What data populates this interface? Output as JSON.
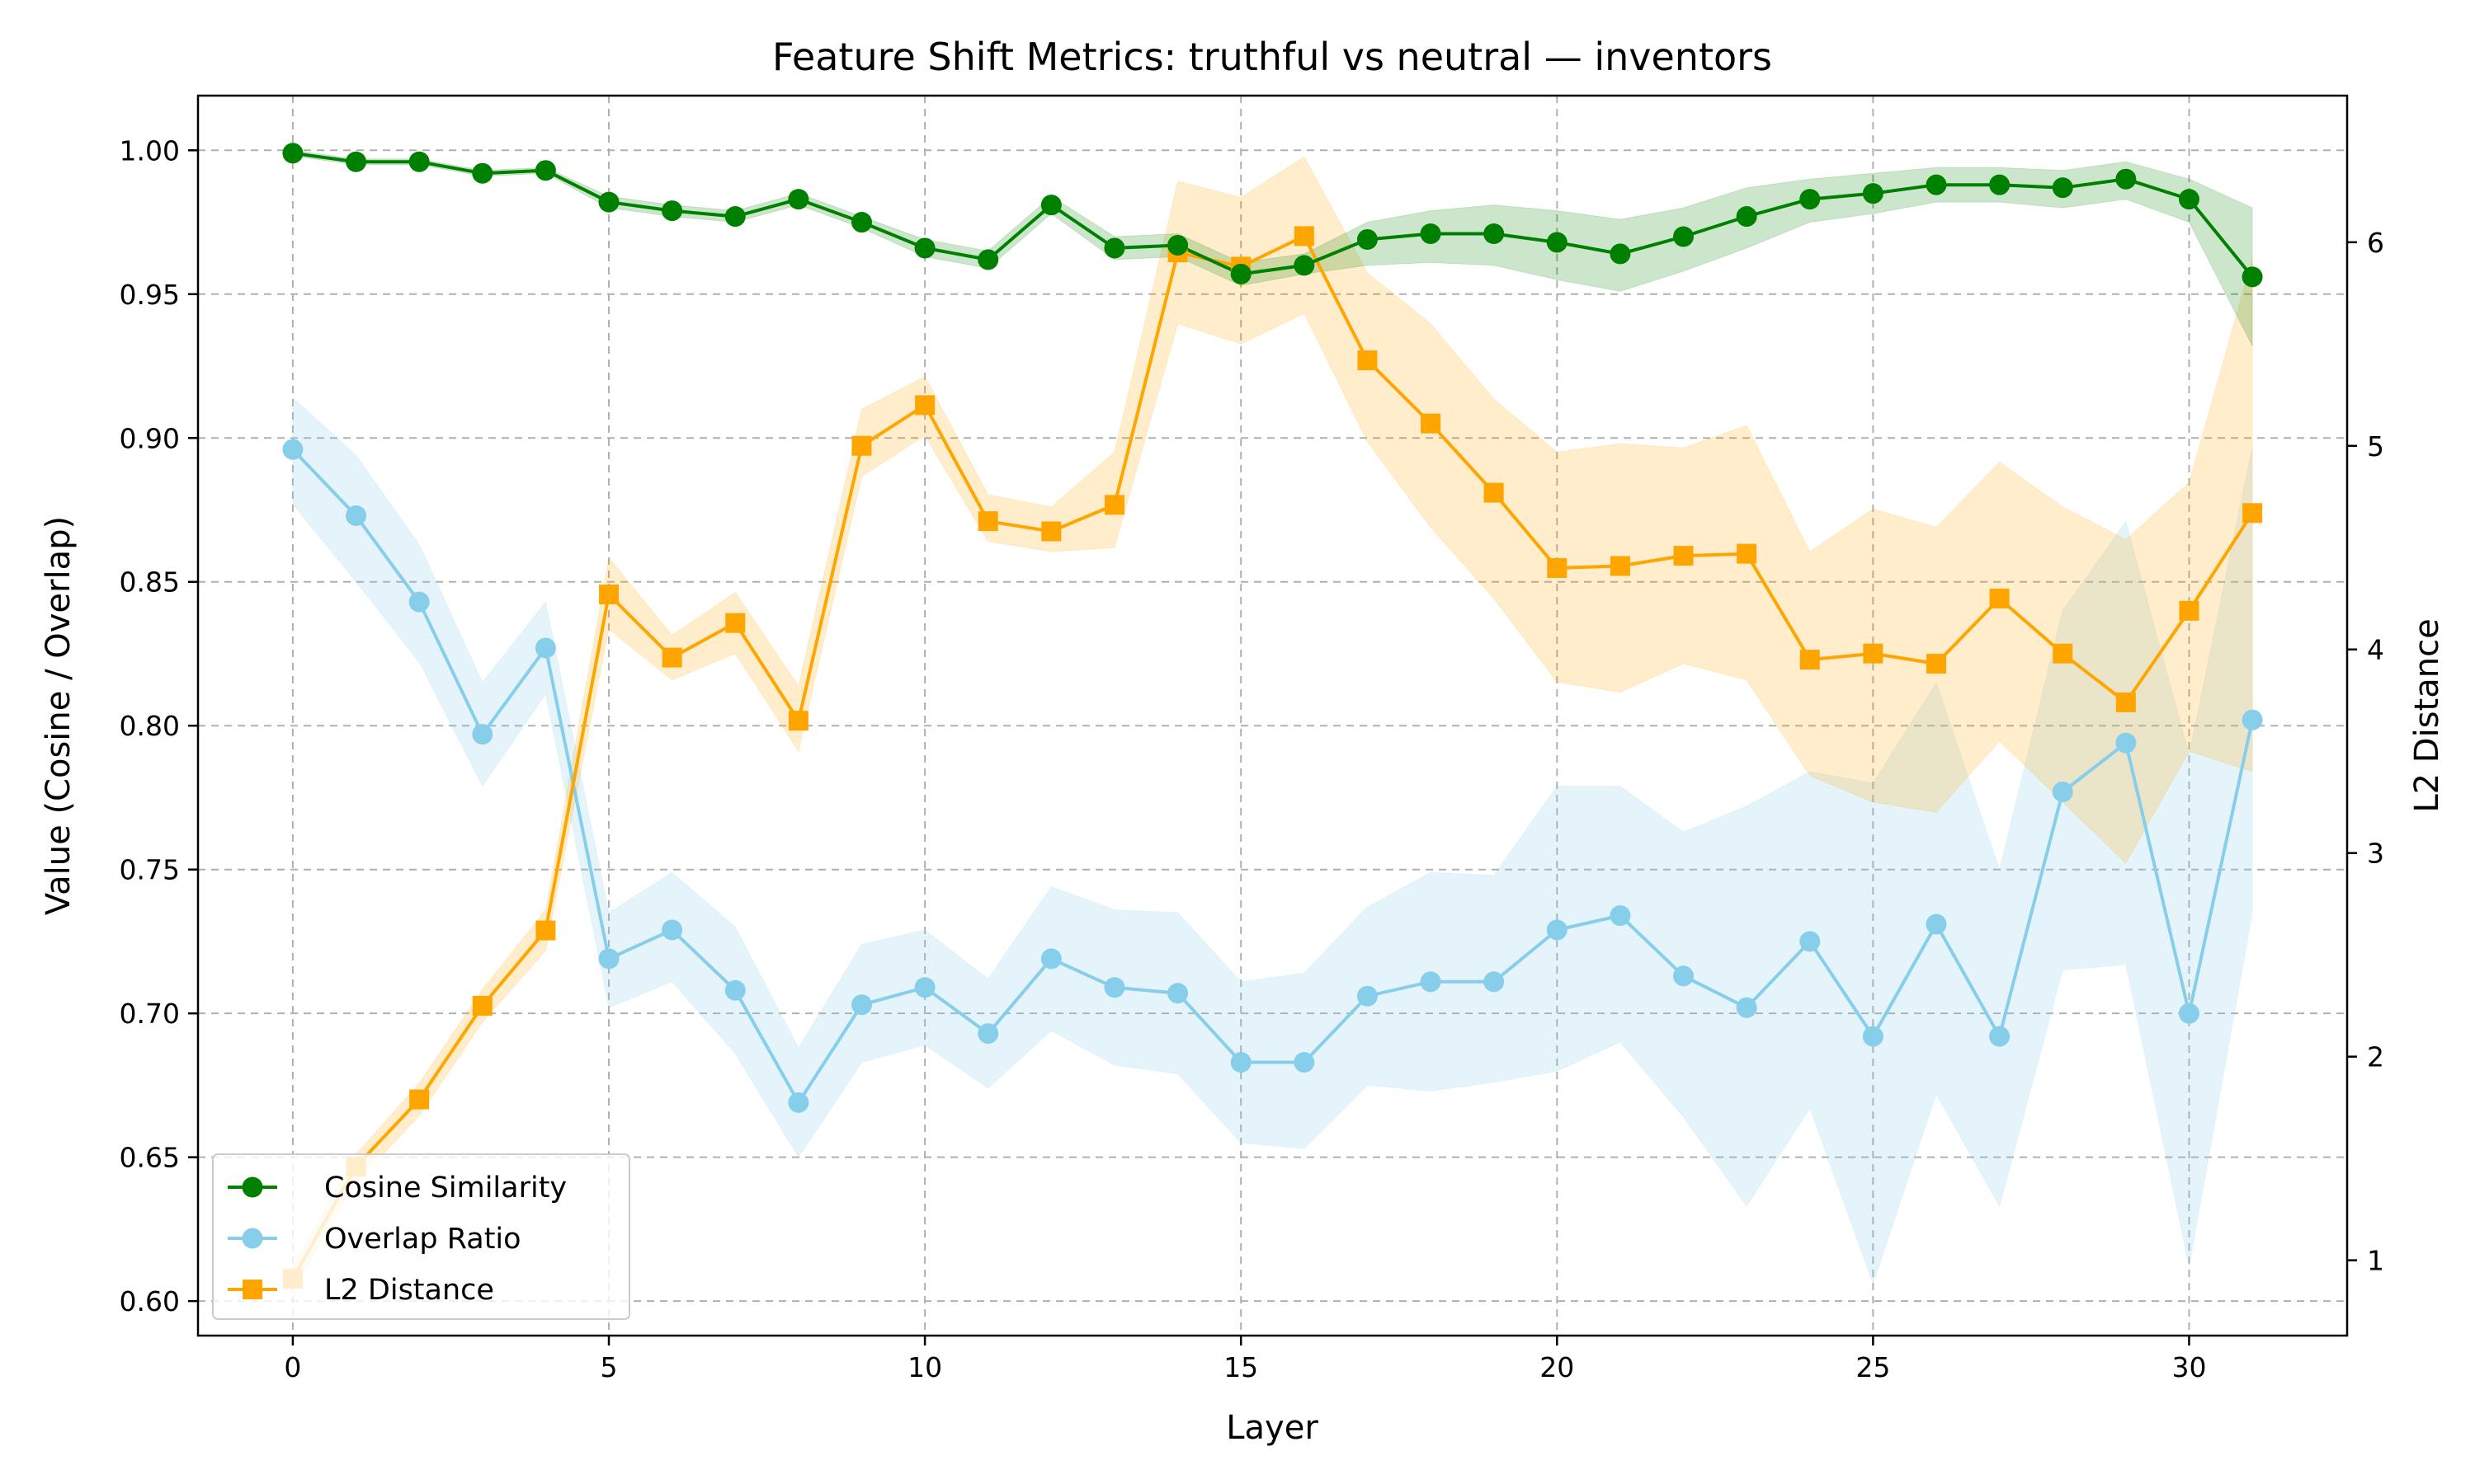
{
  "chart_data": {
    "type": "line",
    "title": "Feature Shift Metrics: truthful vs neutral — inventors",
    "xlabel": "Layer",
    "ylabel": "Value (Cosine / Overlap)",
    "y2label": "L2 Distance",
    "xlim": [
      -1.5,
      32.5
    ],
    "ylim": [
      0.588,
      1.019
    ],
    "y2lim": [
      0.63,
      6.72
    ],
    "xticks": [
      0,
      5,
      10,
      15,
      20,
      25,
      30
    ],
    "yticks": [
      0.6,
      0.65,
      0.7,
      0.75,
      0.8,
      0.85,
      0.9,
      0.95,
      1.0
    ],
    "y2ticks": [
      1,
      2,
      3,
      4,
      5,
      6
    ],
    "grid": true,
    "legend_position": "lower-left",
    "x": [
      0,
      1,
      2,
      3,
      4,
      5,
      6,
      7,
      8,
      9,
      10,
      11,
      12,
      13,
      14,
      15,
      16,
      17,
      18,
      19,
      20,
      21,
      22,
      23,
      24,
      25,
      26,
      27,
      28,
      29,
      30,
      31
    ],
    "series": [
      {
        "name": "Cosine Similarity",
        "axis": "left",
        "color": "#008000",
        "marker": "circle",
        "values": [
          0.999,
          0.996,
          0.996,
          0.992,
          0.993,
          0.982,
          0.979,
          0.977,
          0.983,
          0.975,
          0.966,
          0.962,
          0.981,
          0.966,
          0.967,
          0.957,
          0.96,
          0.969,
          0.971,
          0.971,
          0.968,
          0.964,
          0.97,
          0.977,
          0.983,
          0.985,
          0.988,
          0.988,
          0.987,
          0.99,
          0.983,
          0.956
        ],
        "lower": [
          0.998,
          0.995,
          0.995,
          0.991,
          0.992,
          0.98,
          0.977,
          0.975,
          0.981,
          0.973,
          0.963,
          0.959,
          0.978,
          0.962,
          0.963,
          0.953,
          0.957,
          0.96,
          0.961,
          0.96,
          0.955,
          0.951,
          0.958,
          0.966,
          0.975,
          0.978,
          0.982,
          0.982,
          0.98,
          0.983,
          0.975,
          0.932
        ],
        "upper": [
          1.0,
          0.997,
          0.997,
          0.993,
          0.994,
          0.984,
          0.981,
          0.979,
          0.985,
          0.977,
          0.969,
          0.965,
          0.984,
          0.97,
          0.971,
          0.961,
          0.964,
          0.975,
          0.979,
          0.981,
          0.979,
          0.976,
          0.98,
          0.987,
          0.99,
          0.992,
          0.994,
          0.994,
          0.993,
          0.996,
          0.99,
          0.98
        ]
      },
      {
        "name": "Overlap Ratio",
        "axis": "left",
        "color": "#87CEEB",
        "marker": "circle",
        "values": [
          0.896,
          0.873,
          0.843,
          0.797,
          0.827,
          0.719,
          0.729,
          0.708,
          0.669,
          0.703,
          0.709,
          0.693,
          0.719,
          0.709,
          0.707,
          0.683,
          0.683,
          0.706,
          0.711,
          0.711,
          0.729,
          0.734,
          0.713,
          0.702,
          0.725,
          0.692,
          0.731,
          0.692,
          0.777,
          0.794,
          0.7,
          0.802
        ],
        "lower": [
          0.877,
          0.85,
          0.822,
          0.779,
          0.811,
          0.702,
          0.711,
          0.686,
          0.65,
          0.683,
          0.689,
          0.674,
          0.694,
          0.682,
          0.679,
          0.655,
          0.653,
          0.675,
          0.673,
          0.676,
          0.68,
          0.69,
          0.664,
          0.633,
          0.667,
          0.606,
          0.672,
          0.633,
          0.715,
          0.717,
          0.612,
          0.735
        ],
        "upper": [
          0.914,
          0.894,
          0.863,
          0.815,
          0.843,
          0.735,
          0.749,
          0.73,
          0.688,
          0.724,
          0.729,
          0.712,
          0.744,
          0.736,
          0.735,
          0.711,
          0.714,
          0.737,
          0.749,
          0.748,
          0.779,
          0.779,
          0.763,
          0.772,
          0.784,
          0.78,
          0.815,
          0.75,
          0.84,
          0.871,
          0.79,
          0.897
        ]
      },
      {
        "name": "L2 Distance",
        "axis": "right",
        "color": "#FFA500",
        "marker": "square",
        "values": [
          0.91,
          1.46,
          1.79,
          2.25,
          2.62,
          4.27,
          3.96,
          4.13,
          3.65,
          5.0,
          5.2,
          4.63,
          4.58,
          4.71,
          5.95,
          5.88,
          6.03,
          5.42,
          5.11,
          4.77,
          4.4,
          4.41,
          4.46,
          4.47,
          3.95,
          3.98,
          3.93,
          4.25,
          3.98,
          3.74,
          4.19,
          4.67
        ],
        "lower": [
          0.85,
          1.38,
          1.71,
          2.17,
          2.52,
          4.1,
          3.85,
          3.98,
          3.5,
          4.85,
          5.05,
          4.53,
          4.48,
          4.5,
          5.6,
          5.5,
          5.65,
          5.02,
          4.6,
          4.25,
          3.84,
          3.79,
          3.93,
          3.85,
          3.38,
          3.25,
          3.2,
          3.55,
          3.25,
          2.95,
          3.5,
          3.4
        ],
        "upper": [
          0.97,
          1.52,
          1.87,
          2.33,
          2.72,
          4.45,
          4.07,
          4.28,
          3.82,
          5.18,
          5.34,
          4.76,
          4.7,
          4.97,
          6.3,
          6.22,
          6.42,
          5.85,
          5.6,
          5.23,
          4.97,
          5.01,
          4.99,
          5.1,
          4.48,
          4.69,
          4.6,
          4.92,
          4.7,
          4.54,
          4.82,
          5.92
        ]
      }
    ]
  }
}
